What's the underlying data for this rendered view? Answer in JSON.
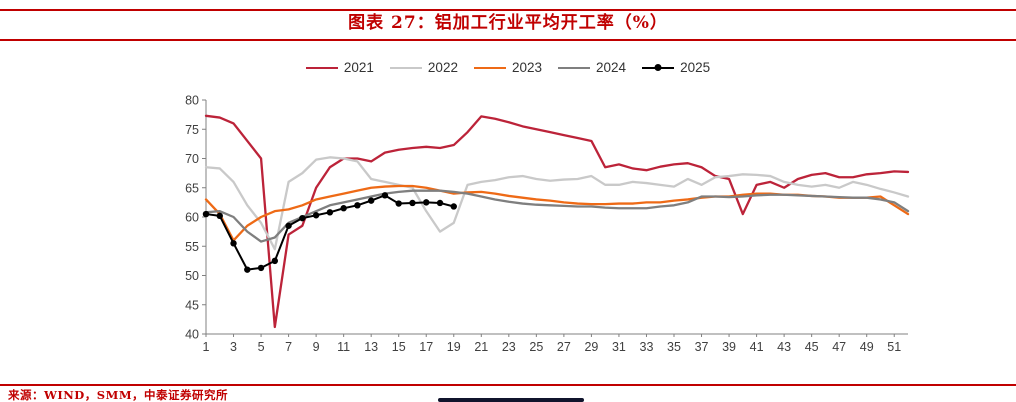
{
  "header": {
    "title": "图表 27：铝加工行业平均开工率（%）"
  },
  "footer": {
    "source": "来源：WIND，SMM，中泰证券研究所"
  },
  "colors": {
    "accent_red": "#c00000",
    "series_2021": "#bc2339",
    "series_2022": "#c9c9c9",
    "series_2023": "#ee6a16",
    "series_2024": "#7f7f7f",
    "series_2025": "#000000"
  },
  "chart_data": {
    "type": "line",
    "title": "铝加工行业平均开工率（%）",
    "xlabel": "",
    "ylabel": "",
    "x_unit": "week (1-52)",
    "ylim": [
      40,
      80
    ],
    "yticks": [
      40,
      45,
      50,
      55,
      60,
      65,
      70,
      75,
      80
    ],
    "xticks": [
      1,
      3,
      5,
      7,
      9,
      11,
      13,
      15,
      17,
      19,
      21,
      23,
      25,
      27,
      29,
      31,
      33,
      35,
      37,
      39,
      41,
      43,
      45,
      47,
      49,
      51
    ],
    "grid": false,
    "legend_position": "top",
    "series": [
      {
        "name": "2021",
        "color": "#bc2339",
        "marker": false,
        "values": [
          77.3,
          77.0,
          76.0,
          73.0,
          70.0,
          41.2,
          57.0,
          58.5,
          65.0,
          68.5,
          70.0,
          70.0,
          69.5,
          71.0,
          71.5,
          71.8,
          72.0,
          71.8,
          72.3,
          74.5,
          77.2,
          76.8,
          76.2,
          75.5,
          75.0,
          74.5,
          74.0,
          73.5,
          73.0,
          68.5,
          69.0,
          68.3,
          68.0,
          68.6,
          69.0,
          69.2,
          68.5,
          67.0,
          66.5,
          60.5,
          65.5,
          66.0,
          65.0,
          66.5,
          67.2,
          67.5,
          66.8,
          66.8,
          67.3,
          67.5,
          67.8,
          67.7
        ]
      },
      {
        "name": "2022",
        "color": "#c9c9c9",
        "marker": false,
        "values": [
          68.5,
          68.3,
          66.0,
          62.0,
          59.0,
          54.5,
          66.0,
          67.5,
          69.8,
          70.2,
          70.0,
          69.5,
          66.5,
          66.0,
          65.5,
          65.0,
          61.0,
          57.5,
          59.0,
          65.5,
          66.0,
          66.3,
          66.8,
          67.0,
          66.5,
          66.2,
          66.4,
          66.5,
          67.0,
          65.5,
          65.5,
          66.0,
          65.8,
          65.5,
          65.2,
          66.5,
          65.5,
          66.8,
          67.0,
          67.3,
          67.2,
          67.0,
          66.0,
          65.5,
          65.2,
          65.5,
          65.0,
          66.0,
          65.5,
          64.8,
          64.2,
          63.5
        ]
      },
      {
        "name": "2023",
        "color": "#ee6a16",
        "marker": false,
        "values": [
          63.0,
          60.5,
          56.0,
          58.5,
          60.0,
          61.0,
          61.3,
          62.0,
          63.0,
          63.5,
          64.0,
          64.5,
          65.0,
          65.2,
          65.3,
          65.3,
          65.0,
          64.5,
          64.0,
          64.2,
          64.3,
          64.0,
          63.6,
          63.3,
          63.0,
          62.8,
          62.5,
          62.3,
          62.2,
          62.2,
          62.3,
          62.3,
          62.5,
          62.5,
          62.8,
          63.0,
          63.3,
          63.5,
          63.5,
          63.8,
          64.0,
          64.0,
          63.8,
          63.8,
          63.6,
          63.5,
          63.3,
          63.3,
          63.3,
          63.5,
          62.0,
          60.5
        ]
      },
      {
        "name": "2024",
        "color": "#7f7f7f",
        "marker": false,
        "values": [
          60.8,
          61.0,
          60.0,
          57.5,
          55.8,
          56.5,
          59.0,
          60.0,
          61.0,
          62.0,
          62.5,
          63.0,
          63.5,
          64.0,
          64.3,
          64.5,
          64.5,
          64.5,
          64.3,
          64.0,
          63.5,
          63.0,
          62.6,
          62.3,
          62.1,
          62.0,
          61.9,
          61.8,
          61.8,
          61.6,
          61.5,
          61.5,
          61.5,
          61.8,
          62.0,
          62.5,
          63.5,
          63.5,
          63.4,
          63.5,
          63.7,
          63.8,
          63.8,
          63.7,
          63.6,
          63.5,
          63.4,
          63.3,
          63.3,
          63.0,
          62.5,
          61.0
        ]
      },
      {
        "name": "2025",
        "color": "#000000",
        "marker": true,
        "values": [
          60.5,
          60.2,
          55.5,
          51.0,
          51.3,
          52.5,
          58.5,
          59.8,
          60.3,
          60.8,
          61.5,
          62.0,
          62.8,
          63.7,
          62.3,
          62.4,
          62.5,
          62.4,
          61.8
        ]
      }
    ]
  }
}
